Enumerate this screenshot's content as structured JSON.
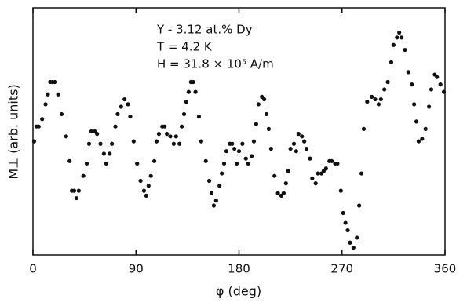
{
  "chart_data": {
    "type": "scatter",
    "annotations": [
      "Y - 3.12 at.% Dy",
      "T = 4.2 K",
      "H = 31.8 × 10⁵ A/m"
    ],
    "xlabel": "φ (deg)",
    "ylabel": "M⊥ (arb. units)",
    "color": "#111111",
    "xlim": [
      0,
      360
    ],
    "xticks": [
      0,
      90,
      180,
      270,
      360
    ],
    "ylim": [
      0,
      100
    ],
    "series": [
      {
        "x": [
          1,
          3,
          5,
          8,
          11,
          13,
          15,
          17,
          19,
          22,
          25,
          29,
          32,
          34,
          36,
          38,
          40,
          44,
          47,
          49,
          51,
          54,
          56,
          59,
          62,
          64,
          67,
          69,
          72,
          74,
          77,
          80,
          83,
          85,
          88,
          91,
          94,
          97,
          99,
          101,
          103,
          106,
          108,
          110,
          113,
          115,
          117,
          120,
          123,
          125,
          128,
          130,
          132,
          134,
          136,
          138,
          140,
          142,
          145,
          147,
          151,
          154,
          156,
          158,
          160,
          163,
          165,
          167,
          169,
          172,
          174,
          176,
          178,
          180,
          183,
          186,
          188,
          191,
          193,
          195,
          197,
          200,
          202,
          204,
          206,
          208,
          211,
          214,
          217,
          219,
          221,
          223,
          225,
          228,
          230,
          232,
          235,
          237,
          239,
          242,
          244,
          247,
          249,
          252,
          254,
          256,
          259,
          261,
          264,
          266,
          269,
          271,
          273,
          275,
          277,
          280,
          283,
          285,
          287,
          289,
          292,
          296,
          299,
          302,
          304,
          307,
          310,
          313,
          315,
          318,
          320,
          322,
          325,
          328,
          331,
          333,
          335,
          337,
          340,
          343,
          346,
          348,
          351,
          353,
          356,
          359
        ],
        "values": [
          46,
          52,
          52,
          55,
          61,
          65,
          70,
          70,
          70,
          65,
          57,
          48,
          38,
          26,
          26,
          23,
          26,
          32,
          37,
          45,
          50,
          50,
          49,
          45,
          41,
          37,
          41,
          45,
          52,
          57,
          60,
          63,
          61,
          56,
          46,
          37,
          30,
          26,
          24,
          28,
          32,
          38,
          46,
          49,
          52,
          52,
          49,
          48,
          45,
          48,
          45,
          52,
          57,
          62,
          66,
          70,
          70,
          66,
          56,
          46,
          38,
          30,
          25,
          20,
          22,
          28,
          33,
          37,
          42,
          45,
          45,
          43,
          37,
          42,
          45,
          39,
          37,
          40,
          46,
          53,
          61,
          64,
          63,
          57,
          51,
          43,
          32,
          25,
          24,
          25,
          29,
          34,
          43,
          45,
          42,
          49,
          48,
          46,
          43,
          39,
          31,
          29,
          33,
          33,
          34,
          35,
          38,
          38,
          37,
          37,
          26,
          17,
          13,
          10,
          5,
          3,
          7,
          20,
          33,
          51,
          62,
          64,
          63,
          61,
          63,
          67,
          70,
          78,
          85,
          88,
          90,
          88,
          83,
          74,
          69,
          61,
          54,
          46,
          47,
          51,
          60,
          67,
          73,
          72,
          69,
          66
        ]
      }
    ]
  }
}
